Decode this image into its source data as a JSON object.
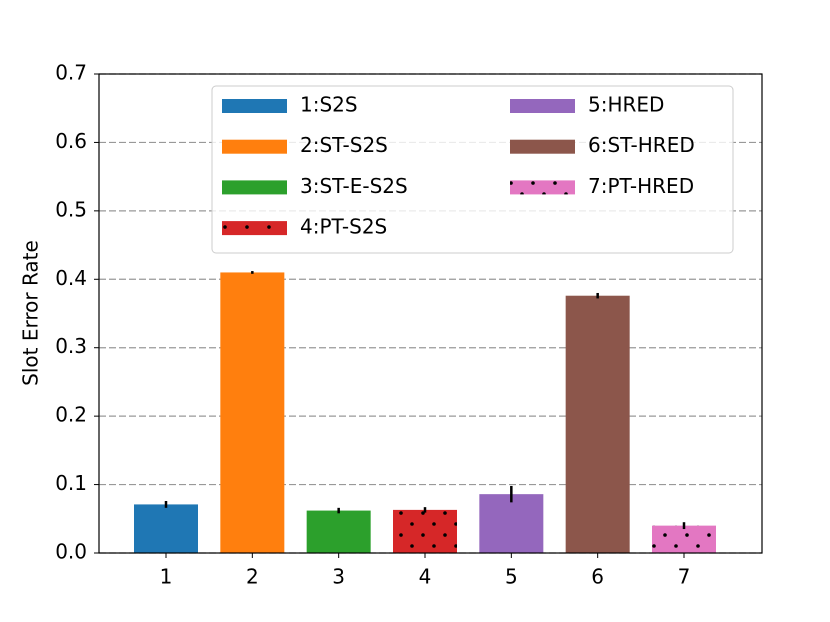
{
  "chart_data": {
    "type": "bar",
    "y_label": "Slot Error Rate",
    "categories": [
      "1",
      "2",
      "3",
      "4",
      "5",
      "6",
      "7"
    ],
    "values": [
      0.071,
      0.41,
      0.062,
      0.063,
      0.086,
      0.376,
      0.04
    ],
    "errors": [
      0.005,
      0.002,
      0.004,
      0.004,
      0.012,
      0.004,
      0.005
    ],
    "colors": [
      "#1f77b4",
      "#ff7f0e",
      "#2ca02c",
      "#d62728",
      "#9467bd",
      "#8c564b",
      "#e377c2"
    ],
    "hatch": [
      false,
      false,
      false,
      true,
      false,
      false,
      true
    ],
    "legend_labels": [
      "1:S2S",
      "2:ST-S2S",
      "3:ST-E-S2S",
      "4:PT-S2S",
      "5:HRED",
      "6:ST-HRED",
      "7:PT-HRED"
    ],
    "ylim": [
      0,
      0.7
    ],
    "yticks": [
      {
        "value": 0,
        "label": "0.0"
      },
      0.1,
      0.2,
      0.3,
      0.4,
      0.5,
      0.6,
      0.7
    ],
    "grid": true,
    "legend_position": "upper right"
  }
}
